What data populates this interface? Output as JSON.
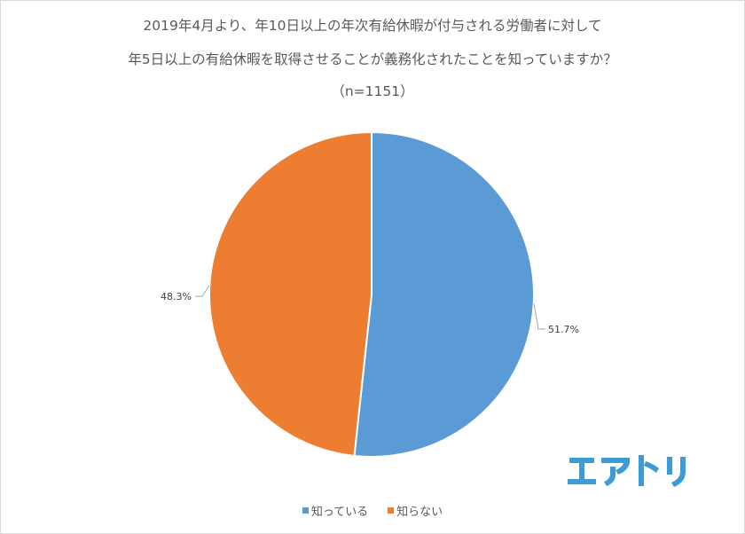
{
  "title": {
    "line1": "2019年4月より、年10日以上の年次有給休暇が付与される労働者に対して",
    "line2": "年5日以上の有給休暇を取得させることが義務化されたことを知っていますか？",
    "line3": "（n=1151）"
  },
  "legend": {
    "items": [
      {
        "label": "知っている",
        "color": "#5b9bd5"
      },
      {
        "label": "知らない",
        "color": "#ed7d31"
      }
    ]
  },
  "labels": {
    "know": "51.7%",
    "dont_know": "48.3%"
  },
  "logo": {
    "text": "エアトリ",
    "color": "#3d9bd6"
  },
  "chart_data": {
    "type": "pie",
    "title": "2019年4月より、年10日以上の年次有給休暇が付与される労働者に対して年5日以上の有給休暇を取得させることが義務化されたことを知っていますか？（n=1151）",
    "categories": [
      "知っている",
      "知らない"
    ],
    "values": [
      51.7,
      48.3
    ],
    "unit": "%",
    "colors": [
      "#5b9bd5",
      "#ed7d31"
    ],
    "n": 1151,
    "start_angle": "12 o'clock, clockwise",
    "legend_position": "bottom"
  }
}
